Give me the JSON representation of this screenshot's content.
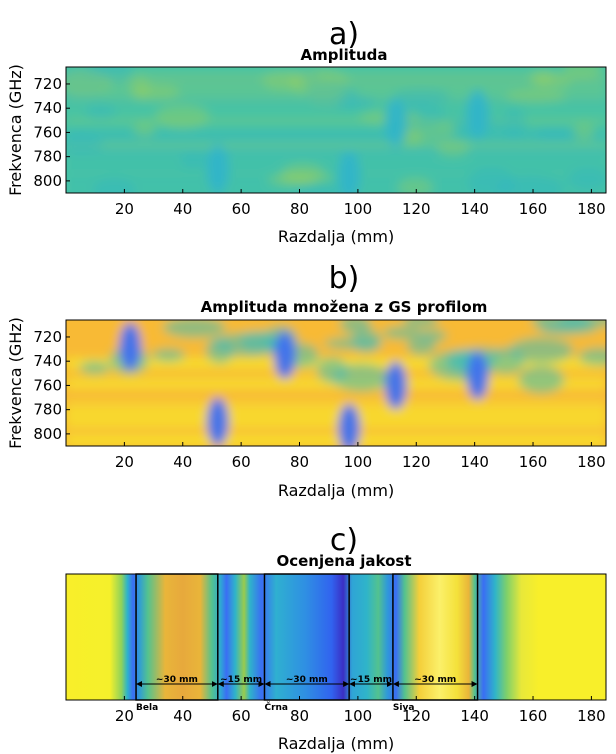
{
  "chart_data": [
    {
      "panel_letter": "a)",
      "type": "heatmap",
      "title": "Amplituda",
      "xlabel": "Razdalja (mm)",
      "ylabel": "Frekvenca (GHz)",
      "xlim": [
        0,
        185
      ],
      "ylim": [
        810,
        706
      ],
      "xticks": [
        20,
        40,
        60,
        80,
        100,
        120,
        140,
        160,
        180
      ],
      "yticks": [
        720,
        740,
        760,
        780,
        800
      ],
      "colors": [
        "#46c3a4",
        "#2fb4c9",
        "#a3d055"
      ],
      "features": [
        {
          "x": 113,
          "y": 752,
          "level": "low"
        },
        {
          "x": 141,
          "y": 745,
          "level": "low"
        },
        {
          "x": 52,
          "y": 790,
          "level": "low"
        },
        {
          "x": 97,
          "y": 795,
          "level": "low"
        }
      ]
    },
    {
      "panel_letter": "b)",
      "type": "heatmap",
      "title": "Amplituda množena z GS profilom",
      "xlabel": "Razdalja (mm)",
      "ylabel": "Frekvenca (GHz)",
      "xlim": [
        0,
        185
      ],
      "ylim": [
        810,
        706
      ],
      "xticks": [
        20,
        40,
        60,
        80,
        100,
        120,
        140,
        160,
        180
      ],
      "yticks": [
        720,
        740,
        760,
        780,
        800
      ],
      "colors": [
        "#3d6ff0",
        "#3fbcb8",
        "#f8ba36",
        "#f8ef2a"
      ],
      "features": [
        {
          "x": 113,
          "y": 760,
          "level": "low"
        },
        {
          "x": 141,
          "y": 752,
          "level": "low"
        },
        {
          "x": 52,
          "y": 790,
          "level": "low"
        },
        {
          "x": 97,
          "y": 795,
          "level": "low"
        },
        {
          "x": 22,
          "y": 728,
          "level": "low"
        },
        {
          "x": 75,
          "y": 735,
          "level": "low"
        }
      ]
    },
    {
      "panel_letter": "c)",
      "type": "heatmap",
      "title": "Ocenjena jakost",
      "xlabel": "Razdalja (mm)",
      "xlim": [
        0,
        185
      ],
      "xticks": [
        20,
        40,
        60,
        80,
        100,
        120,
        140,
        160,
        180
      ],
      "profile": [
        {
          "x": 0,
          "color": "#f8ef2a"
        },
        {
          "x": 15,
          "color": "#f5f02b"
        },
        {
          "x": 19,
          "color": "#8fd25a"
        },
        {
          "x": 21,
          "color": "#2fb4c9"
        },
        {
          "x": 23,
          "color": "#3a6ef4"
        },
        {
          "x": 25,
          "color": "#2f9ad8"
        },
        {
          "x": 28,
          "color": "#53c28f"
        },
        {
          "x": 34,
          "color": "#e9b53a"
        },
        {
          "x": 40,
          "color": "#e7a93c"
        },
        {
          "x": 46,
          "color": "#e9b53a"
        },
        {
          "x": 50,
          "color": "#53c28f"
        },
        {
          "x": 53,
          "color": "#2fa7d4"
        },
        {
          "x": 55,
          "color": "#3a6ef4"
        },
        {
          "x": 58,
          "color": "#2fb4c9"
        },
        {
          "x": 61,
          "color": "#9acb4c"
        },
        {
          "x": 63,
          "color": "#2fb4c9"
        },
        {
          "x": 67,
          "color": "#3a6ef4"
        },
        {
          "x": 72,
          "color": "#2fb0d0"
        },
        {
          "x": 82,
          "color": "#2f8fe3"
        },
        {
          "x": 91,
          "color": "#3163ef"
        },
        {
          "x": 95,
          "color": "#3a2fc4"
        },
        {
          "x": 98,
          "color": "#2fa4d6"
        },
        {
          "x": 103,
          "color": "#2fb4c9"
        },
        {
          "x": 107,
          "color": "#53c28f"
        },
        {
          "x": 110,
          "color": "#2f9ad8"
        },
        {
          "x": 113,
          "color": "#3a6ef4"
        },
        {
          "x": 116,
          "color": "#53c28f"
        },
        {
          "x": 121,
          "color": "#f4cf3a"
        },
        {
          "x": 128,
          "color": "#fbf06a"
        },
        {
          "x": 134,
          "color": "#f4e13a"
        },
        {
          "x": 138,
          "color": "#e9b53a"
        },
        {
          "x": 140,
          "color": "#53c28f"
        },
        {
          "x": 143,
          "color": "#3a6ef4"
        },
        {
          "x": 147,
          "color": "#2fb4c9"
        },
        {
          "x": 151,
          "color": "#7fd06a"
        },
        {
          "x": 156,
          "color": "#e8e83a"
        },
        {
          "x": 162,
          "color": "#f8ef2a"
        },
        {
          "x": 185,
          "color": "#f8ef2a"
        }
      ],
      "boxes": [
        {
          "x0": 24,
          "x1": 52,
          "label": "Bela"
        },
        {
          "x0": 68,
          "x1": 97,
          "label": "Črna"
        },
        {
          "x0": 112,
          "x1": 141,
          "label": "Siva"
        }
      ],
      "dimensions": [
        {
          "x0": 24,
          "x1": 52,
          "label": "~30 mm"
        },
        {
          "x0": 52,
          "x1": 68,
          "label": "~15 mm"
        },
        {
          "x0": 68,
          "x1": 97,
          "label": "~30 mm"
        },
        {
          "x0": 97,
          "x1": 112,
          "label": "~15 mm"
        },
        {
          "x0": 112,
          "x1": 141,
          "label": "~30 mm"
        }
      ]
    }
  ]
}
